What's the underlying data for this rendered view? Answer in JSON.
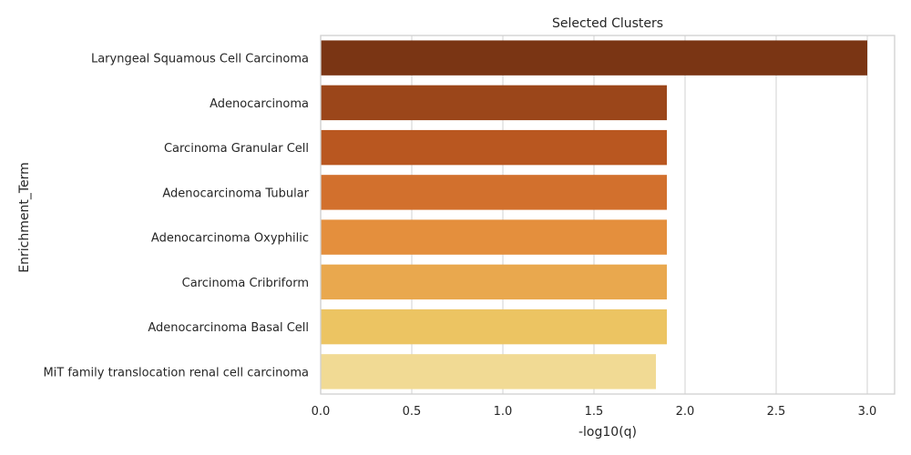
{
  "chart_data": {
    "type": "bar",
    "orientation": "horizontal",
    "title": "Selected Clusters",
    "xlabel": "-log10(q)",
    "ylabel": "Enrichment_Term",
    "xlim": [
      0,
      3.15
    ],
    "xticks": [
      "0.0",
      "0.5",
      "1.0",
      "1.5",
      "2.0",
      "2.5",
      "3.0"
    ],
    "grid": true,
    "categories": [
      "Laryngeal Squamous Cell Carcinoma",
      "Adenocarcinoma",
      "Carcinoma Granular Cell",
      "Adenocarcinoma Tubular",
      "Adenocarcinoma Oxyphilic",
      "Carcinoma Cribriform",
      "Adenocarcinoma Basal Cell",
      "MiT family translocation renal cell carcinoma"
    ],
    "values": [
      3.0,
      1.9,
      1.9,
      1.9,
      1.9,
      1.9,
      1.9,
      1.84
    ],
    "colors": [
      "#7a3514",
      "#9b461a",
      "#b95720",
      "#d2702d",
      "#e48f3d",
      "#e9a84e",
      "#ecc462",
      "#f1da94"
    ]
  }
}
